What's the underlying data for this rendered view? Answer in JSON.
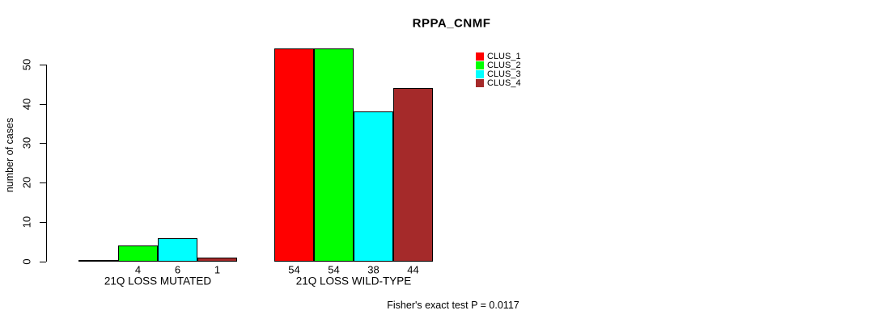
{
  "chart_data": {
    "type": "bar",
    "title": "RPPA_CNMF",
    "ylabel": "number of cases",
    "xlabel": "",
    "ylim": [
      0,
      55
    ],
    "yticks": [
      0,
      10,
      20,
      30,
      40,
      50
    ],
    "grid": false,
    "legend_position": "top-right",
    "categories": [
      "21Q LOSS MUTATED",
      "21Q LOSS WILD-TYPE"
    ],
    "series": [
      {
        "name": "CLUS_1",
        "color": "#ff0000",
        "values": [
          0,
          54
        ]
      },
      {
        "name": "CLUS_2",
        "color": "#00ff00",
        "values": [
          4,
          54
        ]
      },
      {
        "name": "CLUS_3",
        "color": "#00ffff",
        "values": [
          6,
          38
        ]
      },
      {
        "name": "CLUS_4",
        "color": "#a52a2a",
        "values": [
          1,
          44
        ]
      }
    ],
    "bar_value_labels": [
      [
        "",
        "4",
        "6",
        "1"
      ],
      [
        "54",
        "54",
        "38",
        "44"
      ]
    ],
    "annotation": "Fisher's exact test P = 0.0117"
  }
}
